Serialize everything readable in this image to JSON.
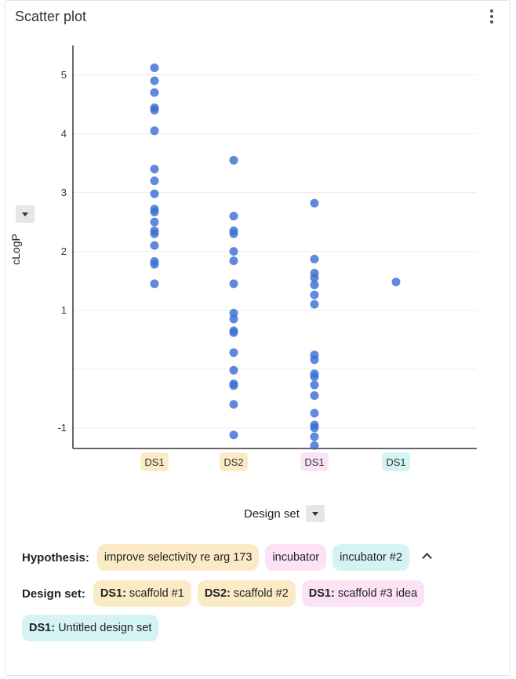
{
  "header": {
    "title": "Scatter plot",
    "menu_icon": "more-vert-icon"
  },
  "controls": {
    "y_dropdown_icon": "caret-down-icon",
    "x_dropdown_icon": "caret-down-icon"
  },
  "chart_data": {
    "type": "scatter",
    "title": "",
    "xlabel": "Design set",
    "ylabel": "cLogP",
    "ylim": [
      -1.35,
      5.5
    ],
    "y_ticks": [
      -1,
      1,
      2,
      3,
      4,
      5
    ],
    "gridlines_at": [
      -1,
      0,
      1,
      2,
      3,
      4,
      5
    ],
    "grid": true,
    "point_color": "#3b6fd4",
    "categories": [
      {
        "label": "DS1",
        "color": "#faebc6"
      },
      {
        "label": "DS2",
        "color": "#faebc6"
      },
      {
        "label": "DS1",
        "color": "#fbe3f5"
      },
      {
        "label": "DS1",
        "color": "#d4f3f3"
      }
    ],
    "series": [
      {
        "category_index": 0,
        "values": [
          5.12,
          4.9,
          4.7,
          4.44,
          4.4,
          4.05,
          3.4,
          3.2,
          2.98,
          2.72,
          2.67,
          2.5,
          2.35,
          2.3,
          2.1,
          1.83,
          1.78,
          1.45
        ]
      },
      {
        "category_index": 1,
        "values": [
          3.55,
          2.6,
          2.35,
          2.3,
          2.0,
          1.84,
          1.45,
          0.95,
          0.85,
          0.65,
          0.62,
          0.28,
          -0.02,
          -0.25,
          -0.28,
          -0.6,
          -1.12
        ]
      },
      {
        "category_index": 2,
        "values": [
          2.82,
          1.87,
          1.63,
          1.55,
          1.43,
          1.26,
          1.1,
          0.24,
          0.16,
          -0.08,
          -0.13,
          -0.27,
          -0.45,
          -0.75,
          -0.95,
          -1.0,
          -1.15,
          -1.3
        ]
      },
      {
        "category_index": 3,
        "values": [
          1.48
        ]
      }
    ]
  },
  "filters": {
    "hypothesis": {
      "label": "Hypothesis:",
      "collapse_icon": "chevron-up-icon",
      "chips": [
        {
          "text": "improve selectivity re arg 173",
          "color": "#faebc6"
        },
        {
          "text": "incubator",
          "color": "#fbe3f5"
        },
        {
          "text": "incubator #2",
          "color": "#d4f3f3"
        }
      ]
    },
    "design_set": {
      "label": "Design set:",
      "chips": [
        {
          "prefix": "DS1:",
          "text": "scaffold #1",
          "color": "#faebc6"
        },
        {
          "prefix": "DS2:",
          "text": "scaffold #2",
          "color": "#faebc6"
        },
        {
          "prefix": "DS1:",
          "text": "scaffold #3 idea",
          "color": "#fbe3f5"
        },
        {
          "prefix": "DS1:",
          "text": "Untitled design set",
          "color": "#d4f3f3"
        }
      ]
    }
  }
}
